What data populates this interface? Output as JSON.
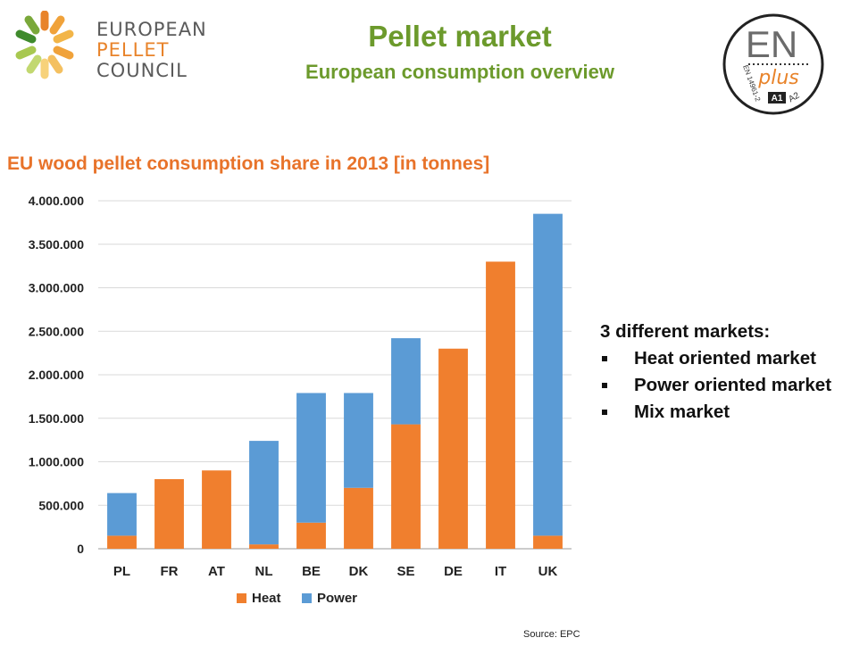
{
  "header": {
    "logo_lines": [
      "EUROPEAN",
      "PELLET",
      "COUNCIL"
    ],
    "title": "Pellet market",
    "subtitle": "European consumption overview",
    "badge": {
      "main": "EN",
      "sub": "plus",
      "side_text": "EN 14961-2",
      "grade1": "A1",
      "grade2": "A2"
    }
  },
  "chart_data": {
    "type": "bar",
    "stacked": true,
    "title": "EU wood pellet consumption share in 2013 [in tonnes]",
    "categories": [
      "PL",
      "FR",
      "AT",
      "NL",
      "BE",
      "DK",
      "SE",
      "DE",
      "IT",
      "UK"
    ],
    "series": [
      {
        "name": "Heat",
        "color": "#f07f2e",
        "values": [
          150000,
          800000,
          900000,
          50000,
          300000,
          700000,
          1430000,
          2300000,
          3300000,
          150000
        ]
      },
      {
        "name": "Power",
        "color": "#5b9bd5",
        "values": [
          490000,
          0,
          0,
          1190000,
          1490000,
          1090000,
          990000,
          0,
          0,
          3700000
        ]
      }
    ],
    "y_ticks": [
      "0",
      "500.000",
      "1.000.000",
      "1.500.000",
      "2.000.000",
      "2.500.000",
      "3.000.000",
      "3.500.000",
      "4.000.000"
    ],
    "ylim": [
      0,
      4000000
    ],
    "grid": true,
    "legend_position": "bottom"
  },
  "markets": {
    "heading": "3 different markets:",
    "items": [
      "Heat oriented market",
      "Power oriented market",
      "Mix market"
    ]
  },
  "source": "Source: EPC",
  "colors": {
    "green": "#6c9a2c",
    "orange": "#e8732a"
  }
}
